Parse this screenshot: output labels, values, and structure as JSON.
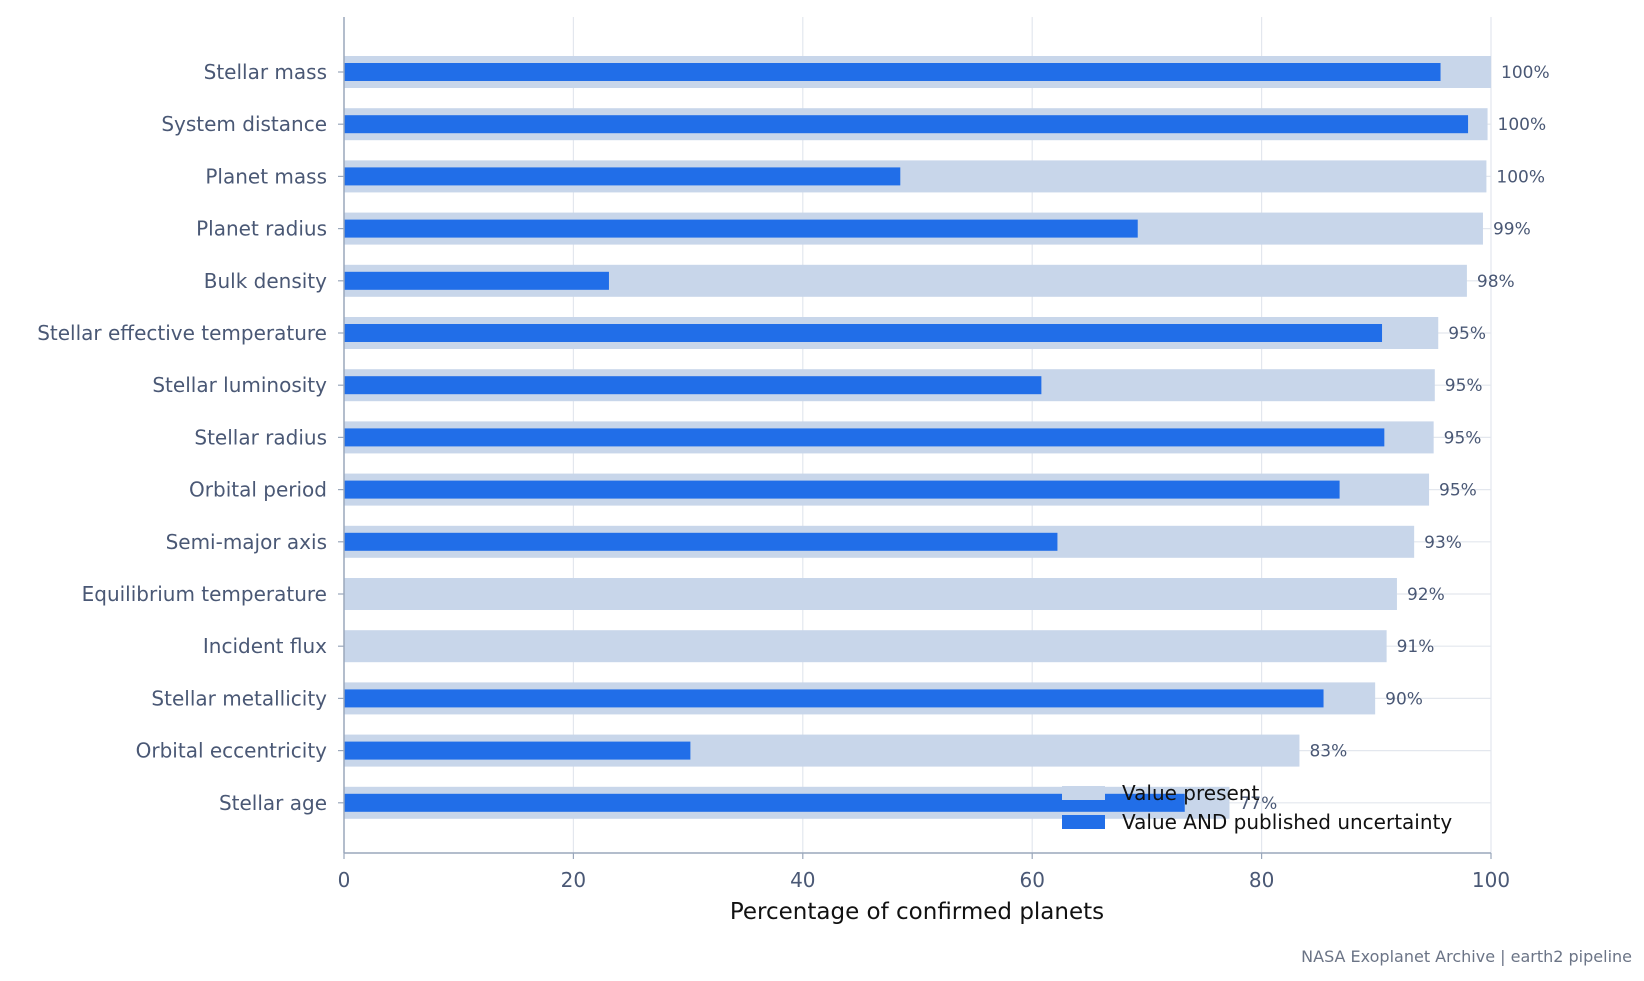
{
  "chart_data": {
    "type": "bar",
    "orientation": "horizontal",
    "categories": [
      "Stellar mass",
      "System distance",
      "Planet mass",
      "Planet radius",
      "Bulk density",
      "Stellar effective temperature",
      "Stellar luminosity",
      "Stellar radius",
      "Orbital period",
      "Semi-major axis",
      "Equilibrium temperature",
      "Incident flux",
      "Stellar metallicity",
      "Orbital eccentricity",
      "Stellar age"
    ],
    "series": [
      {
        "name": "Value present",
        "color": "#c8d6ea",
        "values": [
          100,
          99.7,
          99.6,
          99.3,
          97.9,
          95.4,
          95.1,
          95.0,
          94.6,
          93.3,
          91.8,
          90.9,
          89.9,
          83.3,
          77.2
        ]
      },
      {
        "name": "Value AND published uncertainty",
        "color": "#216ee8",
        "values": [
          95.6,
          98.0,
          48.5,
          69.2,
          23.1,
          90.5,
          60.8,
          90.7,
          86.8,
          62.2,
          0,
          0,
          85.4,
          30.2,
          73.3
        ]
      }
    ],
    "value_labels": [
      "100%",
      "100%",
      "100%",
      "99%",
      "98%",
      "95%",
      "95%",
      "95%",
      "95%",
      "93%",
      "92%",
      "91%",
      "90%",
      "83%",
      "77%"
    ],
    "xlabel": "Percentage of confirmed planets",
    "ylabel": "",
    "xlim": [
      0,
      100
    ],
    "xticks": [
      "0",
      "20",
      "40",
      "60",
      "80",
      "100"
    ],
    "grid": "vertical",
    "legend_position": "bottom-right"
  },
  "footer": {
    "source": "NASA Exoplanet Archive | earth2 pipeline"
  }
}
